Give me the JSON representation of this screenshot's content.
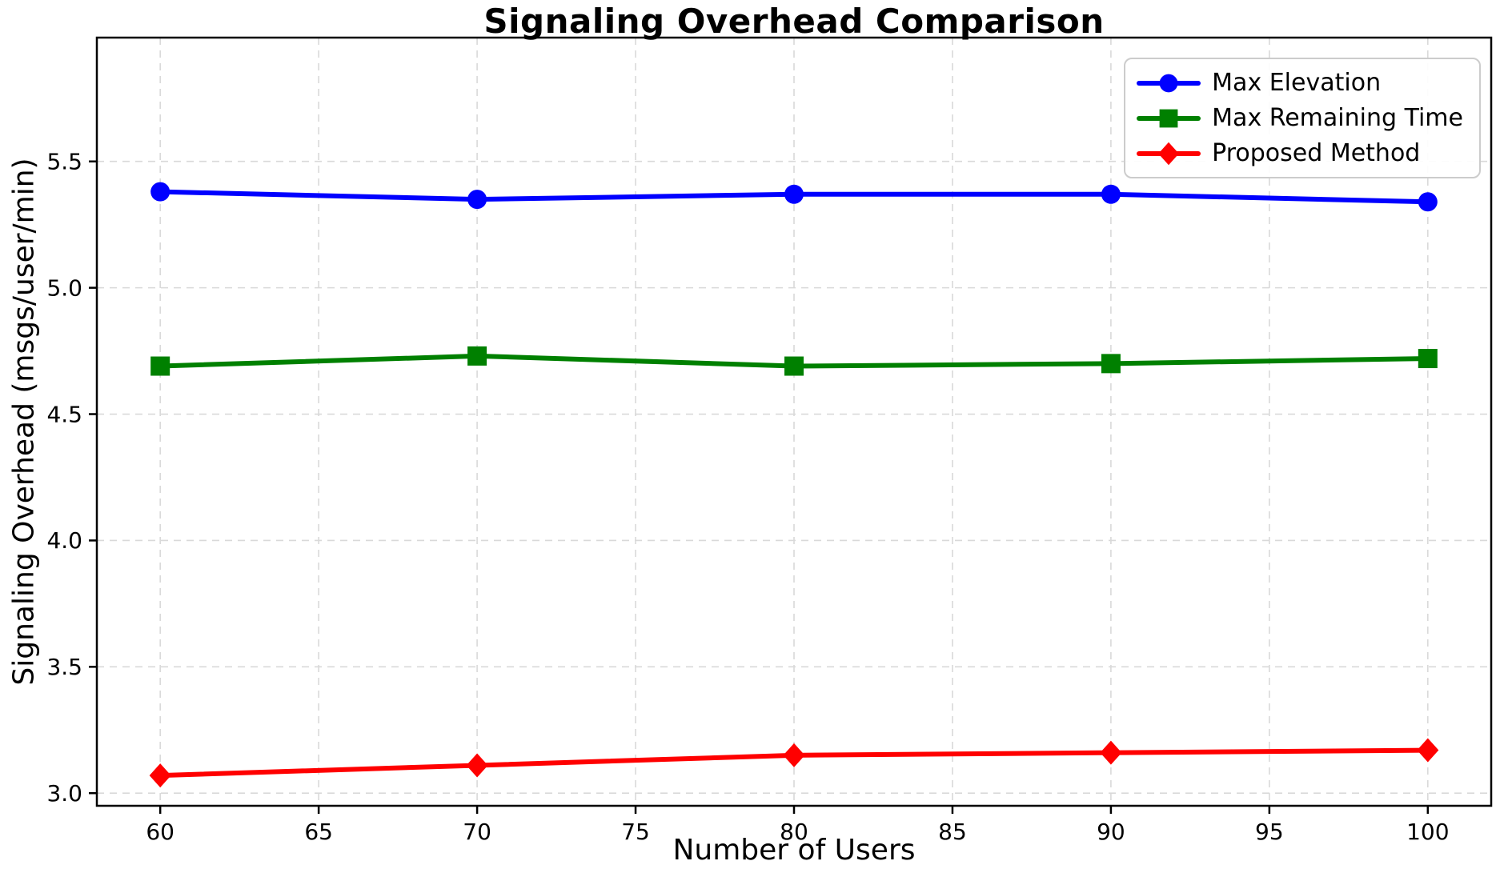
{
  "chart_data": {
    "type": "line",
    "title": "Signaling Overhead Comparison",
    "xlabel": "Number of Users",
    "ylabel": "Signaling Overhead (msgs/user/min)",
    "x": [
      60,
      70,
      80,
      90,
      100
    ],
    "series": [
      {
        "name": "Max Elevation",
        "color": "#0000FF",
        "marker": "circle",
        "values": [
          5.38,
          5.35,
          5.37,
          5.37,
          5.34
        ]
      },
      {
        "name": "Max Remaining Time",
        "color": "#008000",
        "marker": "square",
        "values": [
          4.69,
          4.73,
          4.69,
          4.7,
          4.72
        ]
      },
      {
        "name": "Proposed Method",
        "color": "#FF0000",
        "marker": "diamond",
        "values": [
          3.07,
          3.11,
          3.15,
          3.16,
          3.17
        ]
      }
    ],
    "xlim": [
      58,
      102
    ],
    "ylim": [
      2.95,
      5.99
    ],
    "x_ticks": [
      "60",
      "65",
      "70",
      "75",
      "80",
      "85",
      "90",
      "95",
      "100"
    ],
    "y_ticks": [
      "3.0",
      "3.5",
      "4.0",
      "4.5",
      "5.0",
      "5.5"
    ],
    "grid": true,
    "grid_color": "#d9d9d9",
    "axis_color": "#000000",
    "background_color": "#ffffff",
    "legend_position": "top-right"
  }
}
